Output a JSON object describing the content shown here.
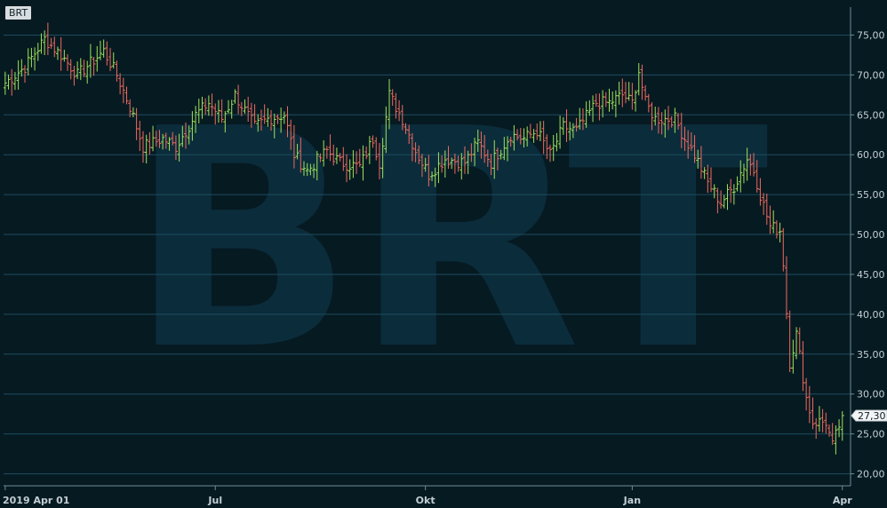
{
  "chart_data": {
    "type": "ohlc",
    "symbol": "BRT",
    "watermark": "BRT",
    "last_price_label": "27,30",
    "last_price": 27.3,
    "ylim": [
      18.5,
      78.5
    ],
    "y_ticks": [
      20,
      25,
      30,
      35,
      40,
      45,
      50,
      55,
      60,
      65,
      70,
      75
    ],
    "y_tick_labels": [
      "20,00",
      "25,00",
      "30,00",
      "35,00",
      "40,00",
      "45,00",
      "50,00",
      "55,00",
      "60,00",
      "65,00",
      "70,00",
      "75,00"
    ],
    "x_ticks": [
      {
        "label": "2019 Apr 01",
        "index": 0
      },
      {
        "label": "Jul",
        "index": 64
      },
      {
        "label": "Okt",
        "index": 128
      },
      {
        "label": "Jan",
        "index": 191
      },
      {
        "label": "Apr",
        "index": 255
      }
    ],
    "close_path": [
      [
        0,
        69.0
      ],
      [
        6,
        71.0
      ],
      [
        12,
        74.5
      ],
      [
        17,
        72.5
      ],
      [
        22,
        70.0
      ],
      [
        30,
        73.0
      ],
      [
        34,
        70.0
      ],
      [
        38,
        66.0
      ],
      [
        42,
        61.0
      ],
      [
        48,
        62.0
      ],
      [
        52,
        61.0
      ],
      [
        58,
        65.0
      ],
      [
        62,
        66.5
      ],
      [
        66,
        64.5
      ],
      [
        70,
        67.5
      ],
      [
        76,
        63.5
      ],
      [
        80,
        64.5
      ],
      [
        85,
        65.0
      ],
      [
        88,
        60.0
      ],
      [
        92,
        58.0
      ],
      [
        98,
        60.5
      ],
      [
        102,
        59.0
      ],
      [
        108,
        58.5
      ],
      [
        112,
        62.0
      ],
      [
        114,
        59.0
      ],
      [
        117,
        67.5
      ],
      [
        121,
        64.5
      ],
      [
        125,
        60.5
      ],
      [
        129,
        57.5
      ],
      [
        134,
        59.5
      ],
      [
        140,
        59.0
      ],
      [
        144,
        61.5
      ],
      [
        148,
        59.0
      ],
      [
        154,
        62.5
      ],
      [
        158,
        62.0
      ],
      [
        162,
        63.0
      ],
      [
        166,
        60.0
      ],
      [
        170,
        63.5
      ],
      [
        174,
        63.0
      ],
      [
        180,
        66.5
      ],
      [
        184,
        66.5
      ],
      [
        188,
        67.5
      ],
      [
        191,
        66.5
      ],
      [
        193,
        70.5
      ],
      [
        195,
        66.5
      ],
      [
        198,
        64.5
      ],
      [
        204,
        64.5
      ],
      [
        207,
        62.0
      ],
      [
        210,
        60.0
      ],
      [
        214,
        56.5
      ],
      [
        218,
        54.0
      ],
      [
        222,
        56.0
      ],
      [
        226,
        59.5
      ],
      [
        228,
        58.0
      ],
      [
        230,
        55.0
      ],
      [
        233,
        51.0
      ],
      [
        236,
        50.5
      ],
      [
        237,
        46.5
      ],
      [
        239,
        34.0
      ],
      [
        241,
        37.5
      ],
      [
        244,
        29.5
      ],
      [
        246,
        26.5
      ],
      [
        250,
        26.5
      ],
      [
        252,
        23.5
      ],
      [
        255,
        27.3
      ]
    ]
  }
}
